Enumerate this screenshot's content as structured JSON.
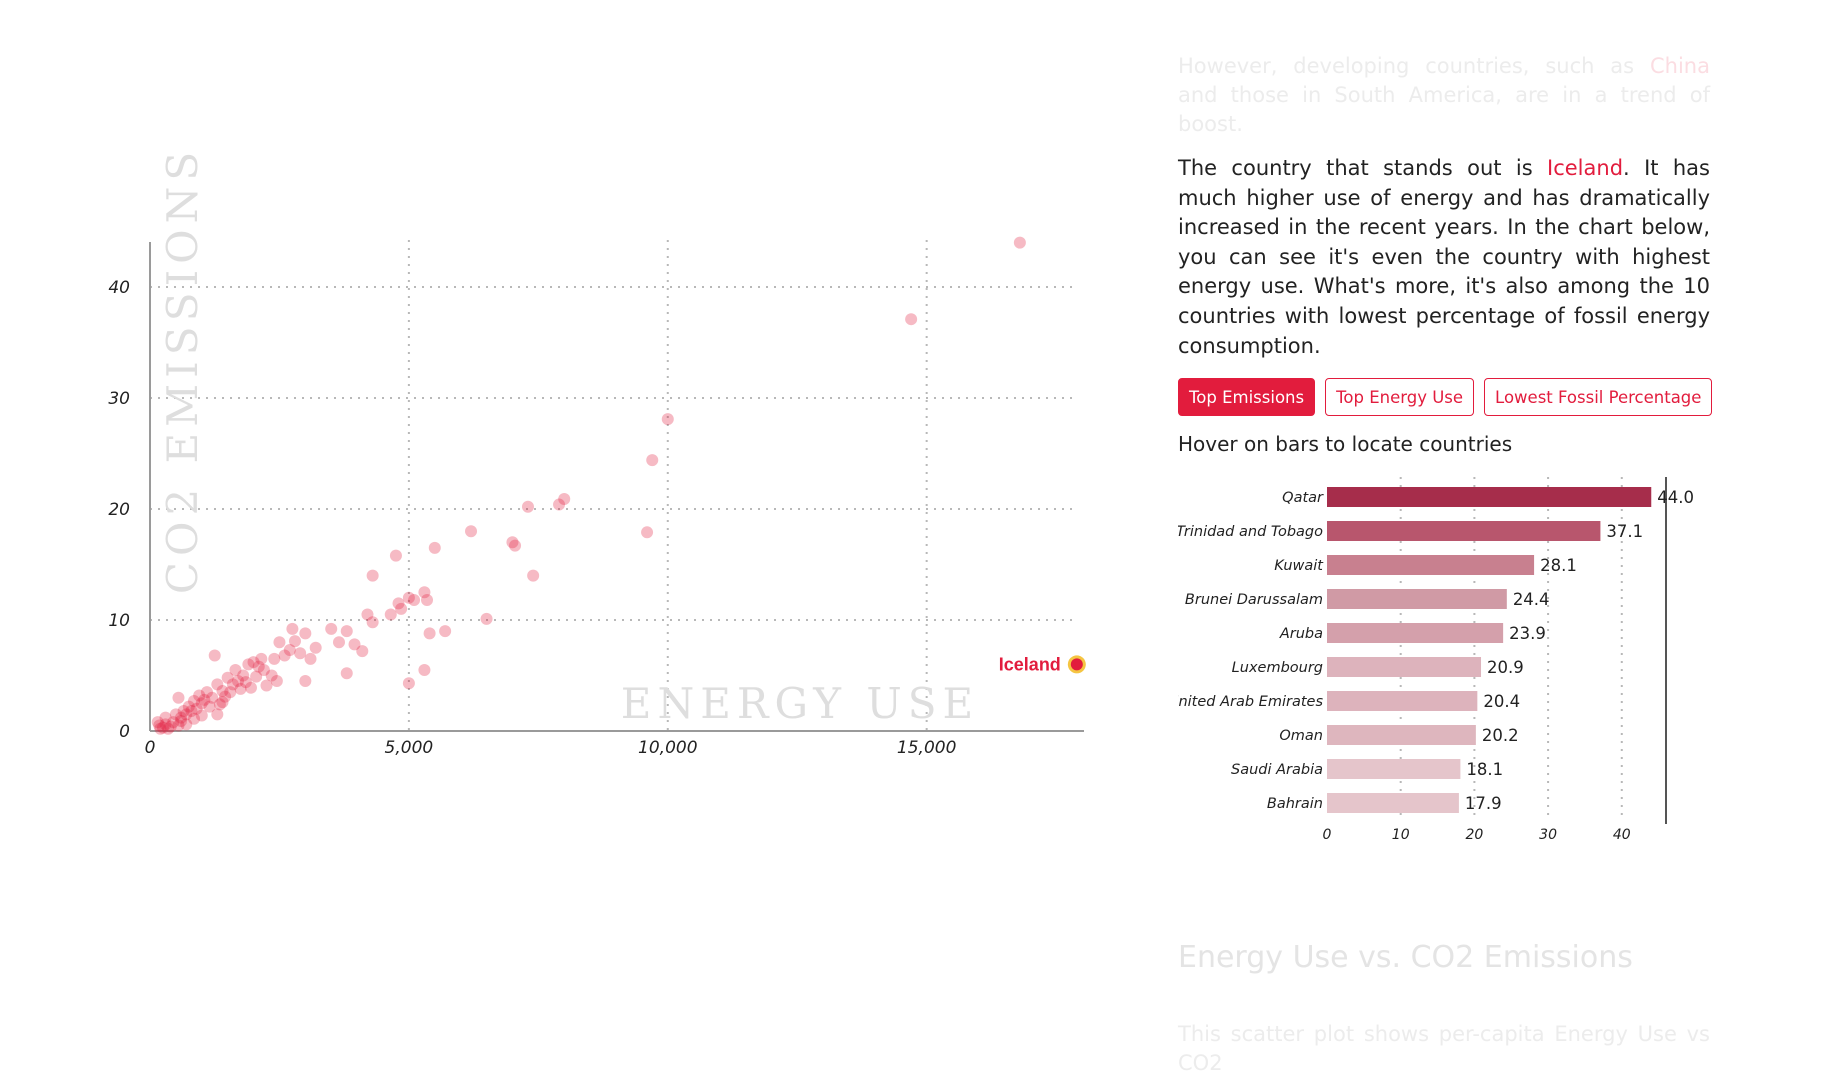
{
  "text": {
    "faded_paragraph_1": {
      "before": "However, developing countries, such as ",
      "highlight": "China",
      "after": " and those in South America, are in a trend of boost."
    },
    "main_paragraph": {
      "before": "The country that stands out is ",
      "highlight": "Iceland",
      "after": ". It has much higher use of energy and has dramatically increased in the recent years. In the chart below, you can see it's even the country with highest energy use. What's more, it's also among the 10 countries with lowest percentage of fossil energy consumption."
    },
    "tabs": [
      {
        "label": "Top Emissions",
        "active": true
      },
      {
        "label": "Top Energy Use",
        "active": false
      },
      {
        "label": "Lowest Fossil Percentage",
        "active": false
      }
    ],
    "hover_hint": "Hover on bars to locate countries",
    "section_heading": "Energy Use vs. CO2 Emissions",
    "faded_paragraph_2": "This scatter plot shows per-capita Energy Use vs CO2"
  },
  "colors": {
    "accent": "#e21c3d",
    "highlight_fill": "#e21c3d",
    "highlight_ring": "#f5c542"
  },
  "chart_data": [
    {
      "type": "scatter",
      "xlabel": "ENERGY USE",
      "ylabel": "CO2 EMISSIONS",
      "xlim": [
        0,
        18000
      ],
      "ylim": [
        0,
        42
      ],
      "xticks": [
        0,
        5000,
        10000,
        15000
      ],
      "xtick_labels": [
        "0",
        "5,000",
        "10,000",
        "15,000"
      ],
      "yticks": [
        0,
        10,
        20,
        30,
        40
      ],
      "ytick_labels": [
        "0",
        "10",
        "20",
        "30",
        "40"
      ],
      "grid": true,
      "highlight": {
        "label": "Iceland",
        "x": 17900,
        "y": 6
      },
      "points": [
        [
          16800,
          44
        ],
        [
          14700,
          37.1
        ],
        [
          10000,
          28.1
        ],
        [
          9700,
          24.4
        ],
        [
          9600,
          17.9
        ],
        [
          8000,
          20.9
        ],
        [
          7900,
          20.4
        ],
        [
          7300,
          20.2
        ],
        [
          7400,
          14
        ],
        [
          7000,
          17
        ],
        [
          7050,
          16.7
        ],
        [
          6200,
          18
        ],
        [
          6500,
          10.1
        ],
        [
          5500,
          16.5
        ],
        [
          5300,
          12.5
        ],
        [
          5350,
          11.8
        ],
        [
          5100,
          11.8
        ],
        [
          5000,
          12
        ],
        [
          4800,
          11.5
        ],
        [
          4850,
          11
        ],
        [
          4750,
          15.8
        ],
        [
          4650,
          10.5
        ],
        [
          4300,
          14
        ],
        [
          4200,
          10.5
        ],
        [
          4300,
          9.8
        ],
        [
          5400,
          8.8
        ],
        [
          5700,
          9
        ],
        [
          5000,
          4.3
        ],
        [
          5300,
          5.5
        ],
        [
          4100,
          7.2
        ],
        [
          3950,
          7.8
        ],
        [
          3800,
          9
        ],
        [
          3650,
          8
        ],
        [
          3500,
          9.2
        ],
        [
          3200,
          7.5
        ],
        [
          3000,
          8.8
        ],
        [
          2900,
          7
        ],
        [
          2800,
          8.1
        ],
        [
          2750,
          9.2
        ],
        [
          2700,
          7.3
        ],
        [
          2600,
          6.8
        ],
        [
          2500,
          8
        ],
        [
          3100,
          6.5
        ],
        [
          3000,
          4.5
        ],
        [
          3800,
          5.2
        ],
        [
          2450,
          4.5
        ],
        [
          2400,
          6.5
        ],
        [
          2200,
          5.5
        ],
        [
          2100,
          5.8
        ],
        [
          2000,
          6.2
        ],
        [
          2050,
          4.9
        ],
        [
          1900,
          6
        ],
        [
          1800,
          5
        ],
        [
          1700,
          4.5
        ],
        [
          1600,
          4.2
        ],
        [
          1500,
          4.8
        ],
        [
          1400,
          3.6
        ],
        [
          1300,
          4.2
        ],
        [
          1250,
          6.8
        ],
        [
          1300,
          1.5
        ],
        [
          1200,
          3
        ],
        [
          1100,
          3.5
        ],
        [
          1050,
          2.8
        ],
        [
          1000,
          2.5
        ],
        [
          950,
          3.2
        ],
        [
          900,
          2
        ],
        [
          850,
          2.7
        ],
        [
          800,
          1.8
        ],
        [
          750,
          2.2
        ],
        [
          700,
          1.5
        ],
        [
          650,
          1.8
        ],
        [
          600,
          1.2
        ],
        [
          550,
          3
        ],
        [
          550,
          0.5
        ],
        [
          500,
          1.5
        ],
        [
          450,
          0.8
        ],
        [
          400,
          0.4
        ],
        [
          350,
          0.2
        ],
        [
          300,
          0.6
        ],
        [
          250,
          0.3
        ],
        [
          200,
          0.2
        ],
        [
          180,
          0.5
        ],
        [
          150,
          0.8
        ],
        [
          300,
          1.2
        ],
        [
          600,
          0.9
        ],
        [
          700,
          0.6
        ],
        [
          850,
          1.1
        ],
        [
          1000,
          1.4
        ],
        [
          1150,
          2.2
        ],
        [
          1400,
          2.6
        ],
        [
          1550,
          3.5
        ],
        [
          1750,
          3.8
        ],
        [
          1950,
          3.9
        ],
        [
          2250,
          4.1
        ],
        [
          2350,
          5
        ],
        [
          2150,
          6.5
        ],
        [
          1850,
          4.4
        ],
        [
          1650,
          5.5
        ],
        [
          1450,
          3.1
        ],
        [
          1350,
          2.4
        ]
      ]
    },
    {
      "type": "bar",
      "orientation": "horizontal",
      "categories": [
        "Qatar",
        "Trinidad and Tobago",
        "Kuwait",
        "Brunei Darussalam",
        "Aruba",
        "Luxembourg",
        "United Arab Emirates",
        "Oman",
        "Saudi Arabia",
        "Bahrain"
      ],
      "values": [
        44.0,
        37.1,
        28.1,
        24.4,
        23.9,
        20.9,
        20.4,
        20.2,
        18.1,
        17.9
      ],
      "value_labels": [
        "44.0",
        "37.1",
        "28.1",
        "24.4",
        "23.9",
        "20.9",
        "20.4",
        "20.2",
        "18.1",
        "17.9"
      ],
      "xlim": [
        0,
        46
      ],
      "xticks": [
        0,
        10,
        20,
        30,
        40
      ],
      "xtick_labels": [
        "0",
        "10",
        "20",
        "30",
        "40"
      ],
      "bar_colors": [
        "#a62d4b",
        "#b8566d",
        "#c8808f",
        "#d09aa5",
        "#d4a0ab",
        "#ddb3bc",
        "#ddb3bc",
        "#deb6be",
        "#e5c5cb",
        "#e5c5cb"
      ]
    }
  ]
}
